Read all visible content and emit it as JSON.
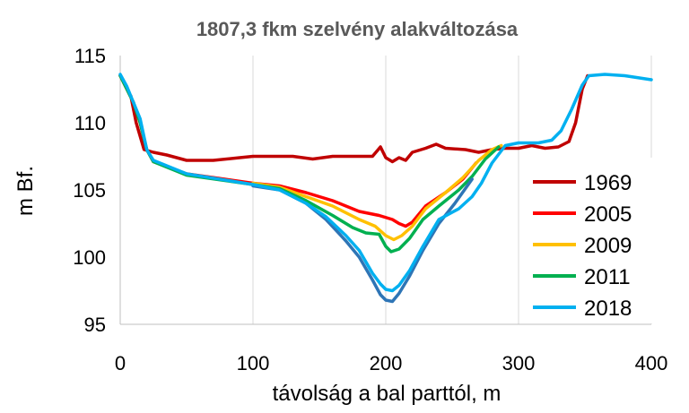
{
  "chart_data": {
    "type": "line",
    "title": "1807,3 fkm szelvény alakváltozása",
    "xlabel": "távolság a bal parttól, m",
    "ylabel": "m Bf.",
    "xlim": [
      0,
      400
    ],
    "ylim": [
      95,
      115
    ],
    "xticks": [
      0,
      100,
      200,
      300,
      400
    ],
    "yticks": [
      95,
      100,
      105,
      110,
      115
    ],
    "grid": "vertical",
    "legend_position": "right",
    "series": [
      {
        "name": "1969",
        "color": "#C00000",
        "points": [
          [
            8,
            112
          ],
          [
            12,
            110
          ],
          [
            18,
            108
          ],
          [
            25,
            107.8
          ],
          [
            35,
            107.6
          ],
          [
            50,
            107.2
          ],
          [
            70,
            107.2
          ],
          [
            90,
            107.4
          ],
          [
            100,
            107.5
          ],
          [
            130,
            107.5
          ],
          [
            145,
            107.3
          ],
          [
            160,
            107.5
          ],
          [
            190,
            107.5
          ],
          [
            196,
            108.2
          ],
          [
            200,
            107.4
          ],
          [
            205,
            107.1
          ],
          [
            210,
            107.4
          ],
          [
            215,
            107.2
          ],
          [
            220,
            107.8
          ],
          [
            230,
            108.1
          ],
          [
            238,
            108.4
          ],
          [
            245,
            108.1
          ],
          [
            260,
            108
          ],
          [
            270,
            107.8
          ],
          [
            280,
            108
          ],
          [
            290,
            108.1
          ],
          [
            300,
            108.1
          ],
          [
            310,
            108.3
          ],
          [
            320,
            108.1
          ],
          [
            330,
            108.2
          ],
          [
            338,
            108.6
          ],
          [
            343,
            110
          ],
          [
            348,
            112.5
          ],
          [
            352,
            113.5
          ]
        ]
      },
      {
        "name": "2005",
        "color": "#FF0000",
        "points": [
          [
            0,
            113.5
          ],
          [
            5,
            112.5
          ],
          [
            10,
            111.5
          ],
          [
            15,
            110
          ],
          [
            20,
            108
          ],
          [
            25,
            107.1
          ],
          [
            50,
            106.2
          ],
          [
            100,
            105.5
          ],
          [
            120,
            105.3
          ],
          [
            140,
            104.8
          ],
          [
            160,
            104.2
          ],
          [
            180,
            103.4
          ],
          [
            195,
            103.1
          ],
          [
            205,
            102.8
          ],
          [
            210,
            102.5
          ],
          [
            215,
            102.3
          ],
          [
            220,
            102.6
          ],
          [
            230,
            103.8
          ],
          [
            245,
            104.8
          ],
          [
            258,
            105.8
          ],
          [
            268,
            107
          ]
        ]
      },
      {
        "name": "2009",
        "color": "#FFC000",
        "points": [
          [
            100,
            105.5
          ],
          [
            120,
            105.2
          ],
          [
            140,
            104.5
          ],
          [
            160,
            103.8
          ],
          [
            180,
            102.8
          ],
          [
            192,
            102.3
          ],
          [
            200,
            101.6
          ],
          [
            206,
            101.3
          ],
          [
            212,
            101.6
          ],
          [
            220,
            102.3
          ],
          [
            230,
            103.6
          ],
          [
            245,
            104.8
          ],
          [
            258,
            105.9
          ],
          [
            270,
            107.2
          ],
          [
            280,
            108
          ],
          [
            287,
            108.3
          ]
        ]
      },
      {
        "name": "2011",
        "color": "#00B050",
        "points": [
          [
            0,
            113.5
          ],
          [
            5,
            112.5
          ],
          [
            10,
            111.5
          ],
          [
            15,
            110
          ],
          [
            20,
            108
          ],
          [
            25,
            107.1
          ],
          [
            50,
            106.1
          ],
          [
            100,
            105.4
          ],
          [
            120,
            105.1
          ],
          [
            140,
            104.2
          ],
          [
            160,
            103.1
          ],
          [
            175,
            102.2
          ],
          [
            185,
            101.8
          ],
          [
            195,
            101.7
          ],
          [
            200,
            100.8
          ],
          [
            204,
            100.4
          ],
          [
            210,
            100.6
          ],
          [
            218,
            101.4
          ],
          [
            228,
            102.8
          ],
          [
            240,
            103.8
          ],
          [
            255,
            105
          ],
          [
            265,
            106
          ],
          [
            275,
            107.3
          ],
          [
            285,
            108.2
          ]
        ]
      },
      {
        "name": "2018 dark",
        "color": "#2E75B6",
        "points": [
          [
            100,
            105.3
          ],
          [
            120,
            105
          ],
          [
            140,
            104
          ],
          [
            155,
            102.8
          ],
          [
            170,
            101.2
          ],
          [
            180,
            100
          ],
          [
            190,
            98.3
          ],
          [
            196,
            97.2
          ],
          [
            200,
            96.8
          ],
          [
            205,
            96.7
          ],
          [
            210,
            97.3
          ],
          [
            218,
            98.6
          ],
          [
            228,
            100.5
          ],
          [
            240,
            102.5
          ],
          [
            252,
            104
          ],
          [
            265,
            105.8
          ]
        ]
      },
      {
        "name": "2018",
        "color": "#00B0F0",
        "points": [
          [
            0,
            113.6
          ],
          [
            5,
            112.7
          ],
          [
            10,
            111.5
          ],
          [
            15,
            110.3
          ],
          [
            20,
            108
          ],
          [
            25,
            107.2
          ],
          [
            50,
            106.2
          ],
          [
            100,
            105.4
          ],
          [
            120,
            105
          ],
          [
            140,
            104
          ],
          [
            155,
            103
          ],
          [
            170,
            101.6
          ],
          [
            180,
            100.5
          ],
          [
            190,
            98.8
          ],
          [
            196,
            98
          ],
          [
            200,
            97.6
          ],
          [
            205,
            97.5
          ],
          [
            210,
            97.9
          ],
          [
            218,
            99
          ],
          [
            228,
            100.8
          ],
          [
            240,
            102.8
          ],
          [
            255,
            103.6
          ],
          [
            265,
            104.5
          ],
          [
            272,
            105.5
          ],
          [
            280,
            107
          ],
          [
            290,
            108.3
          ],
          [
            300,
            108.5
          ],
          [
            315,
            108.5
          ],
          [
            325,
            108.7
          ],
          [
            332,
            109.4
          ],
          [
            340,
            111
          ],
          [
            348,
            112.8
          ],
          [
            353,
            113.5
          ],
          [
            365,
            113.6
          ],
          [
            380,
            113.5
          ],
          [
            400,
            113.2
          ]
        ]
      }
    ],
    "legend": [
      {
        "label": "1969",
        "color": "#C00000"
      },
      {
        "label": "2005",
        "color": "#FF0000"
      },
      {
        "label": "2009",
        "color": "#FFC000"
      },
      {
        "label": "2011",
        "color": "#00B050"
      },
      {
        "label": "2018",
        "color": "#00B0F0"
      }
    ]
  }
}
